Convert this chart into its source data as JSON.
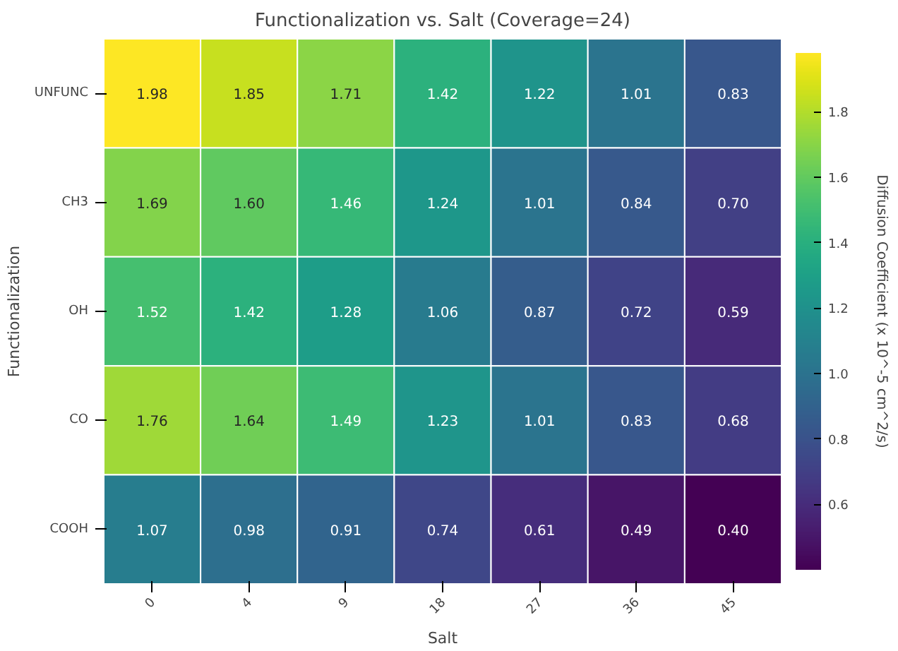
{
  "chart_data": {
    "type": "heatmap",
    "title": "Functionalization vs. Salt (Coverage=24)",
    "xlabel": "Salt",
    "ylabel": "Functionalization",
    "clabel": "Diffusion Coefficient (x 10^-5 cm^2/s)",
    "categories": [
      "0",
      "4",
      "9",
      "18",
      "27",
      "36",
      "45"
    ],
    "y_categories": [
      "UNFUNC",
      "CH3",
      "OH",
      "CO",
      "COOH"
    ],
    "cells": [
      [
        1.98,
        1.85,
        1.71,
        1.42,
        1.22,
        1.01,
        0.83
      ],
      [
        1.69,
        1.6,
        1.46,
        1.24,
        1.01,
        0.84,
        0.7
      ],
      [
        1.52,
        1.42,
        1.28,
        1.06,
        0.87,
        0.72,
        0.59
      ],
      [
        1.76,
        1.64,
        1.49,
        1.23,
        1.01,
        0.83,
        0.68
      ],
      [
        1.07,
        0.98,
        0.91,
        0.74,
        0.61,
        0.49,
        0.4
      ]
    ],
    "cell_labels": [
      [
        "1.98",
        "1.85",
        "1.71",
        "1.42",
        "1.22",
        "1.01",
        "0.83"
      ],
      [
        "1.69",
        "1.60",
        "1.46",
        "1.24",
        "1.01",
        "0.84",
        "0.70"
      ],
      [
        "1.52",
        "1.42",
        "1.28",
        "1.06",
        "0.87",
        "0.72",
        "0.59"
      ],
      [
        "1.76",
        "1.64",
        "1.49",
        "1.23",
        "1.01",
        "0.83",
        "0.68"
      ],
      [
        "1.07",
        "0.98",
        "0.91",
        "0.74",
        "0.61",
        "0.49",
        "0.40"
      ]
    ],
    "clim": [
      0.4,
      1.98
    ],
    "cticks": [
      {
        "value": 0.6,
        "label": "0.6"
      },
      {
        "value": 0.8,
        "label": "0.8"
      },
      {
        "value": 1.0,
        "label": "1.0"
      },
      {
        "value": 1.2,
        "label": "1.2"
      },
      {
        "value": 1.4,
        "label": "1.4"
      },
      {
        "value": 1.6,
        "label": "1.6"
      },
      {
        "value": 1.8,
        "label": "1.8"
      }
    ],
    "data_labels": true
  }
}
